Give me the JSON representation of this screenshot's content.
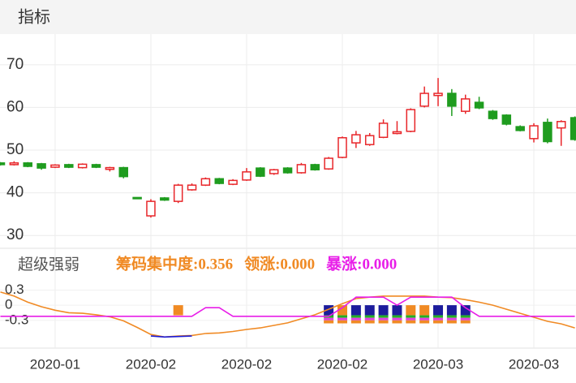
{
  "header": {
    "title": "指标"
  },
  "chart_data": [
    {
      "type": "candlestick",
      "up_color": "#e8262a",
      "down_color": "#1f9c1f",
      "open": [
        47.0,
        46.6,
        47.0,
        46.8,
        46.0,
        46.6,
        45.9,
        46.6,
        45.5,
        45.9,
        38.9,
        34.6,
        38.8,
        38.0,
        40.7,
        41.8,
        43.3,
        42.0,
        43.0,
        45.8,
        44.5,
        45.8,
        44.7,
        46.6,
        45.6,
        48.3,
        51.7,
        51.3,
        53.0,
        53.9,
        54.4,
        60.3,
        62.8,
        63.3,
        59.1,
        61.2,
        59.1,
        58.2,
        55.5,
        52.7,
        56.5,
        55.2,
        57.6
      ],
      "close": [
        46.6,
        47.0,
        46.2,
        45.8,
        46.5,
        46.0,
        46.7,
        46.0,
        45.9,
        43.8,
        38.7,
        38.0,
        38.3,
        41.8,
        41.8,
        43.3,
        42.2,
        42.9,
        44.9,
        43.9,
        45.4,
        44.7,
        46.6,
        45.4,
        48.1,
        52.9,
        53.6,
        53.4,
        56.3,
        54.3,
        59.5,
        63.3,
        63.3,
        60.3,
        62.0,
        59.9,
        57.4,
        56.1,
        54.6,
        55.7,
        52.0,
        56.7,
        52.5
      ],
      "high": [
        47.2,
        47.4,
        47.2,
        47.0,
        46.7,
        46.8,
        46.9,
        46.8,
        46.1,
        46.1,
        38.9,
        38.5,
        39.0,
        42.1,
        42.2,
        43.6,
        43.5,
        43.2,
        45.8,
        46.0,
        45.6,
        46.0,
        47.0,
        46.8,
        48.4,
        53.2,
        54.5,
        54.0,
        57.2,
        56.8,
        59.8,
        64.9,
        66.9,
        64.3,
        63.0,
        62.5,
        59.4,
        58.4,
        55.8,
        56.3,
        57.4,
        57.0,
        57.9
      ],
      "low": [
        46.4,
        46.4,
        46.0,
        45.4,
        45.8,
        45.8,
        45.7,
        45.8,
        45.0,
        43.4,
        38.7,
        34.2,
        38.1,
        37.6,
        40.5,
        41.6,
        42.0,
        41.8,
        42.8,
        43.7,
        44.2,
        44.5,
        44.5,
        45.2,
        45.4,
        48.1,
        50.5,
        51.0,
        52.8,
        53.7,
        54.2,
        60.0,
        60.3,
        58.0,
        58.5,
        59.6,
        57.1,
        55.8,
        54.4,
        51.8,
        51.6,
        51.0,
        52.2
      ],
      "ylim": [
        27,
        77
      ],
      "yticks": [
        30,
        40,
        50,
        60,
        70
      ],
      "grid": true
    },
    {
      "type": "indicator",
      "title": "超级强弱",
      "indicators": [
        {
          "text": "筹码集中度:0.356",
          "color": "#f08a24"
        },
        {
          "text": "领涨:0.000",
          "color": "#f08a24"
        },
        {
          "text": "暴涨:0.000",
          "color": "#e81ee8"
        }
      ],
      "categories": [
        null,
        null,
        null,
        null,
        "2020-01",
        null,
        null,
        null,
        null,
        null,
        null,
        "2020-02",
        null,
        null,
        null,
        null,
        null,
        null,
        "2020-02",
        null,
        null,
        null,
        null,
        null,
        null,
        "2020-02",
        null,
        null,
        null,
        null,
        null,
        null,
        "2020-03",
        null,
        null,
        null,
        null,
        null,
        null,
        "2020-03",
        null,
        null,
        null
      ],
      "ylim": [
        -0.85,
        0.5
      ],
      "yticks": [
        0.3,
        0,
        -0.3
      ],
      "grid": true,
      "series": [
        {
          "kind": "bar",
          "color": "#f08a24",
          "values": [
            null,
            null,
            null,
            null,
            null,
            null,
            null,
            null,
            null,
            null,
            null,
            null,
            null,
            -0.2,
            null,
            null,
            null,
            null,
            null,
            null,
            null,
            null,
            null,
            null,
            null,
            -0.2,
            null,
            null,
            null,
            null,
            -0.2,
            -0.2,
            null,
            null,
            null,
            null,
            null,
            null,
            null,
            null,
            null,
            null,
            null
          ]
        },
        {
          "kind": "bar",
          "color": "#1c1c9c",
          "values": [
            null,
            null,
            null,
            null,
            null,
            null,
            null,
            null,
            null,
            null,
            null,
            null,
            null,
            null,
            null,
            null,
            null,
            null,
            null,
            null,
            null,
            null,
            null,
            null,
            -0.2,
            null,
            -0.2,
            -0.2,
            -0.2,
            -0.2,
            null,
            null,
            -0.2,
            -0.2,
            -0.2,
            null,
            null,
            null,
            null,
            null,
            null,
            null,
            null
          ]
        },
        {
          "kind": "bar",
          "color": "#22b022",
          "values": [
            null,
            null,
            null,
            null,
            null,
            null,
            null,
            null,
            null,
            null,
            null,
            null,
            null,
            null,
            null,
            null,
            null,
            null,
            null,
            null,
            null,
            null,
            null,
            null,
            -0.05,
            -0.05,
            -0.05,
            -0.05,
            -0.05,
            -0.05,
            -0.05,
            -0.05,
            -0.05,
            -0.05,
            -0.05,
            null,
            null,
            null,
            null,
            null,
            null,
            null,
            null
          ]
        },
        {
          "kind": "bar",
          "color": "#e040e0",
          "values": [
            null,
            null,
            null,
            null,
            null,
            null,
            null,
            null,
            null,
            null,
            null,
            null,
            null,
            null,
            null,
            null,
            null,
            null,
            null,
            null,
            null,
            null,
            null,
            null,
            -0.05,
            -0.05,
            -0.05,
            -0.05,
            -0.05,
            -0.05,
            -0.05,
            -0.05,
            -0.05,
            -0.05,
            -0.05,
            null,
            null,
            null,
            null,
            null,
            null,
            null,
            null
          ]
        },
        {
          "kind": "bar",
          "color": "#f08a24",
          "values": [
            null,
            null,
            null,
            null,
            null,
            null,
            null,
            null,
            null,
            null,
            null,
            null,
            null,
            null,
            null,
            null,
            null,
            null,
            null,
            null,
            null,
            null,
            null,
            null,
            -0.06,
            -0.06,
            -0.06,
            -0.06,
            -0.06,
            -0.06,
            -0.06,
            -0.06,
            -0.06,
            -0.06,
            -0.06,
            null,
            null,
            null,
            null,
            null,
            null,
            null,
            null
          ]
        },
        {
          "kind": "line",
          "color": "#f08a24",
          "values": [
            0.26,
            0.18,
            0.06,
            -0.03,
            -0.1,
            -0.15,
            -0.16,
            -0.19,
            -0.23,
            -0.31,
            -0.44,
            -0.58,
            -0.63,
            -0.61,
            -0.6,
            -0.56,
            -0.55,
            -0.52,
            -0.48,
            -0.45,
            -0.4,
            -0.35,
            -0.27,
            -0.19,
            -0.08,
            0.03,
            0.13,
            0.16,
            0.18,
            0.18,
            0.18,
            0.18,
            0.16,
            0.15,
            0.11,
            0.06,
            0,
            -0.08,
            -0.16,
            -0.24,
            -0.32,
            -0.37,
            -0.45
          ]
        },
        {
          "kind": "line",
          "color": "#e81ee8",
          "values": [
            -0.22,
            -0.22,
            -0.22,
            -0.22,
            -0.22,
            -0.22,
            -0.22,
            -0.22,
            -0.22,
            -0.22,
            -0.22,
            -0.22,
            -0.22,
            -0.22,
            -0.22,
            -0.05,
            -0.05,
            -0.22,
            -0.22,
            -0.22,
            -0.22,
            -0.22,
            -0.22,
            -0.22,
            -0.22,
            -0.05,
            0.16,
            0.16,
            0.16,
            0,
            0.16,
            0.16,
            0.16,
            0.16,
            -0.05,
            -0.22,
            -0.22,
            -0.22,
            -0.22,
            -0.22,
            -0.22,
            -0.22,
            -0.22
          ]
        },
        {
          "kind": "line",
          "color": "#1a1ad8",
          "values": [
            null,
            null,
            null,
            null,
            null,
            null,
            null,
            null,
            null,
            null,
            null,
            -0.61,
            -0.63,
            -0.62,
            -0.61,
            null,
            null,
            null,
            null,
            null,
            null,
            null,
            null,
            null,
            null,
            null,
            null,
            null,
            null,
            null,
            null,
            null,
            null,
            null,
            null,
            null,
            null,
            null,
            null,
            null,
            null,
            null,
            null
          ]
        }
      ]
    }
  ]
}
